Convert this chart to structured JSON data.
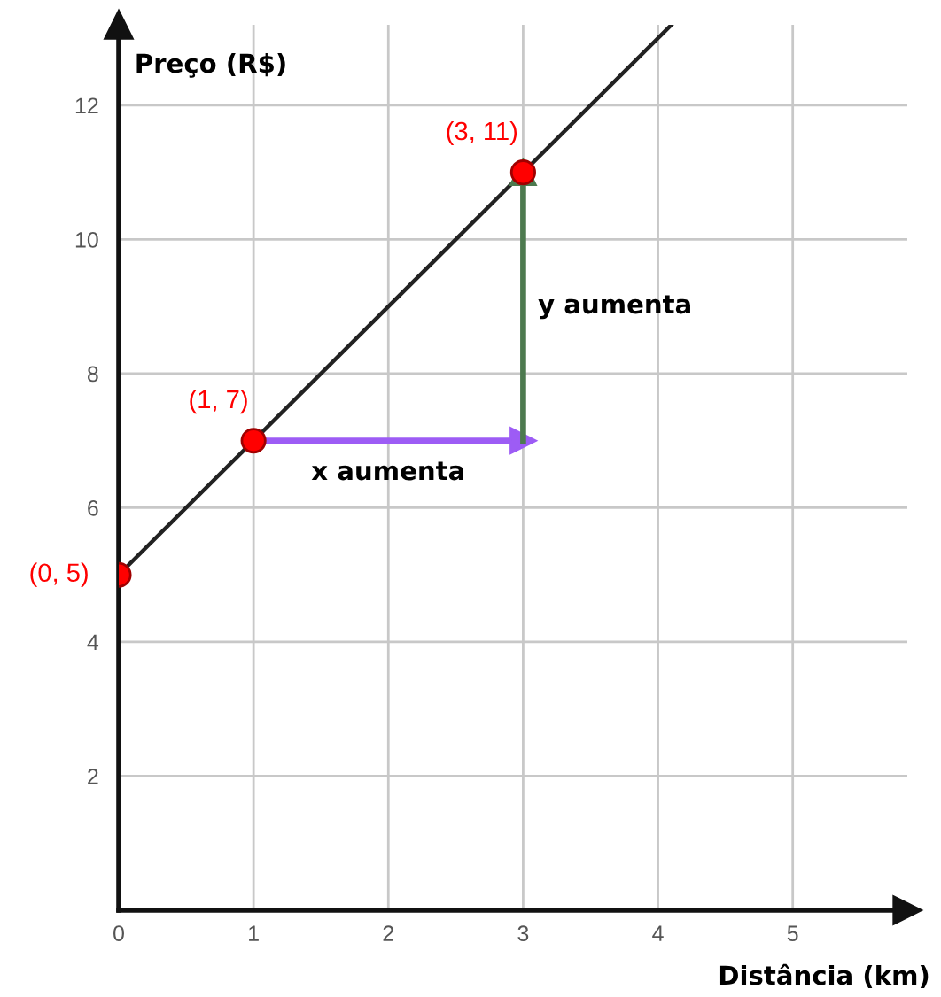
{
  "chart_data": {
    "type": "line",
    "xlabel": "Distância (km)",
    "ylabel": "Preço (R$)",
    "xlim": [
      0,
      5.85
    ],
    "ylim": [
      0,
      13.2
    ],
    "xticks": [
      0,
      1,
      2,
      3,
      4,
      5
    ],
    "yticks": [
      2,
      4,
      6,
      8,
      10,
      12
    ],
    "grid": true,
    "series": [
      {
        "color": "#222222",
        "x": [
          0,
          4.1
        ],
        "values": [
          5,
          13.2
        ]
      },
      {
        "color": "#9d5cf5",
        "x": [
          1,
          3
        ],
        "values": [
          7,
          7
        ],
        "marker": "triangle"
      },
      {
        "color": "#4d7a4f",
        "x": [
          3,
          3
        ],
        "values": [
          7,
          11
        ],
        "marker": "triangle"
      },
      {
        "type": "scatter",
        "color": "#ff0000",
        "x": [
          0,
          1,
          3
        ],
        "values": [
          5,
          7,
          11
        ],
        "marker": "circle",
        "value_labels": [
          "(0, 5)",
          "(1, 7)",
          "(3, 11)"
        ]
      }
    ],
    "annotations": [
      {
        "text": "x aumenta",
        "x": 2,
        "y": 7
      },
      {
        "text": "y aumenta",
        "x": 3,
        "y": 9
      }
    ]
  }
}
